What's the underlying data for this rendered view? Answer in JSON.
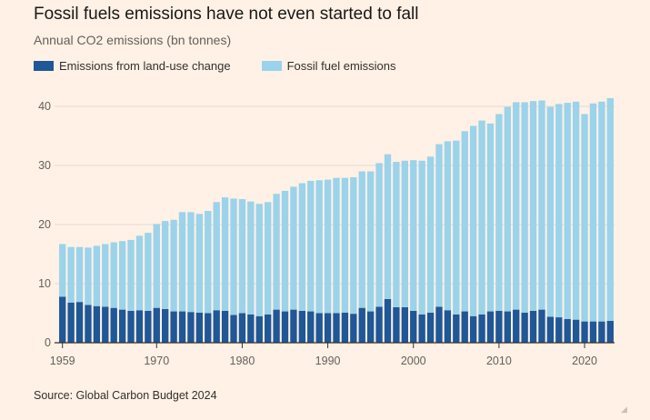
{
  "title": "Fossil fuels emissions have not even started to fall",
  "subtitle": "Annual CO2 emissions (bn tonnes)",
  "source": "Source: Global Carbon Budget 2024",
  "colors": {
    "background": "#fff1e5",
    "land_use": "#1f5797",
    "fossil": "#9bd3ea",
    "grid": "#e6d9ce",
    "axis": "#33302e"
  },
  "chart_data": {
    "type": "bar",
    "stacked": true,
    "title": "Fossil fuels emissions have not even started to fall",
    "subtitle": "Annual CO2 emissions (bn tonnes)",
    "xlabel": "",
    "ylabel": "",
    "ylim": [
      0,
      42
    ],
    "yticks": [
      0,
      10,
      20,
      30,
      40
    ],
    "xticks": [
      1959,
      1970,
      1980,
      1990,
      2000,
      2010,
      2020
    ],
    "grid": true,
    "legend_position": "top-left",
    "x": [
      1959,
      1960,
      1961,
      1962,
      1963,
      1964,
      1965,
      1966,
      1967,
      1968,
      1969,
      1970,
      1971,
      1972,
      1973,
      1974,
      1975,
      1976,
      1977,
      1978,
      1979,
      1980,
      1981,
      1982,
      1983,
      1984,
      1985,
      1986,
      1987,
      1988,
      1989,
      1990,
      1991,
      1992,
      1993,
      1994,
      1995,
      1996,
      1997,
      1998,
      1999,
      2000,
      2001,
      2002,
      2003,
      2004,
      2005,
      2006,
      2007,
      2008,
      2009,
      2010,
      2011,
      2012,
      2013,
      2014,
      2015,
      2016,
      2017,
      2018,
      2019,
      2020,
      2021,
      2022,
      2023
    ],
    "series": [
      {
        "name": "Emissions from land-use change",
        "color": "#1f5797",
        "values": [
          7.8,
          6.8,
          6.9,
          6.4,
          6.2,
          6.1,
          5.9,
          5.6,
          5.4,
          5.5,
          5.4,
          5.9,
          5.7,
          5.3,
          5.3,
          5.2,
          5.1,
          5.0,
          5.5,
          5.4,
          4.7,
          5.0,
          4.8,
          4.5,
          4.8,
          5.6,
          5.3,
          5.6,
          5.4,
          5.3,
          5.0,
          5.0,
          5.0,
          5.1,
          4.9,
          5.9,
          5.3,
          6.1,
          7.4,
          6.0,
          6.0,
          5.4,
          4.8,
          5.1,
          6.1,
          5.5,
          4.8,
          5.3,
          4.5,
          4.8,
          5.3,
          5.4,
          5.3,
          5.6,
          5.1,
          5.4,
          5.6,
          4.4,
          4.3,
          4.0,
          3.9,
          3.6,
          3.6,
          3.6,
          3.7
        ]
      },
      {
        "name": "Fossil fuel emissions",
        "color": "#9bd3ea",
        "values": [
          8.9,
          9.4,
          9.3,
          9.7,
          10.2,
          10.6,
          11.1,
          11.6,
          12.0,
          12.6,
          13.2,
          14.2,
          14.9,
          15.5,
          16.8,
          16.9,
          16.7,
          17.3,
          18.3,
          19.2,
          19.7,
          19.3,
          19.1,
          19.0,
          19.0,
          19.6,
          20.4,
          20.8,
          21.6,
          22.1,
          22.5,
          22.6,
          22.9,
          22.8,
          23.1,
          23.1,
          23.7,
          24.3,
          24.5,
          24.6,
          24.8,
          25.5,
          26.0,
          26.4,
          27.5,
          28.6,
          29.4,
          30.5,
          32.2,
          32.8,
          31.8,
          33.3,
          34.6,
          35.1,
          35.6,
          35.5,
          35.4,
          35.5,
          36.1,
          36.6,
          36.9,
          35.1,
          36.9,
          37.2,
          37.7
        ]
      }
    ]
  }
}
